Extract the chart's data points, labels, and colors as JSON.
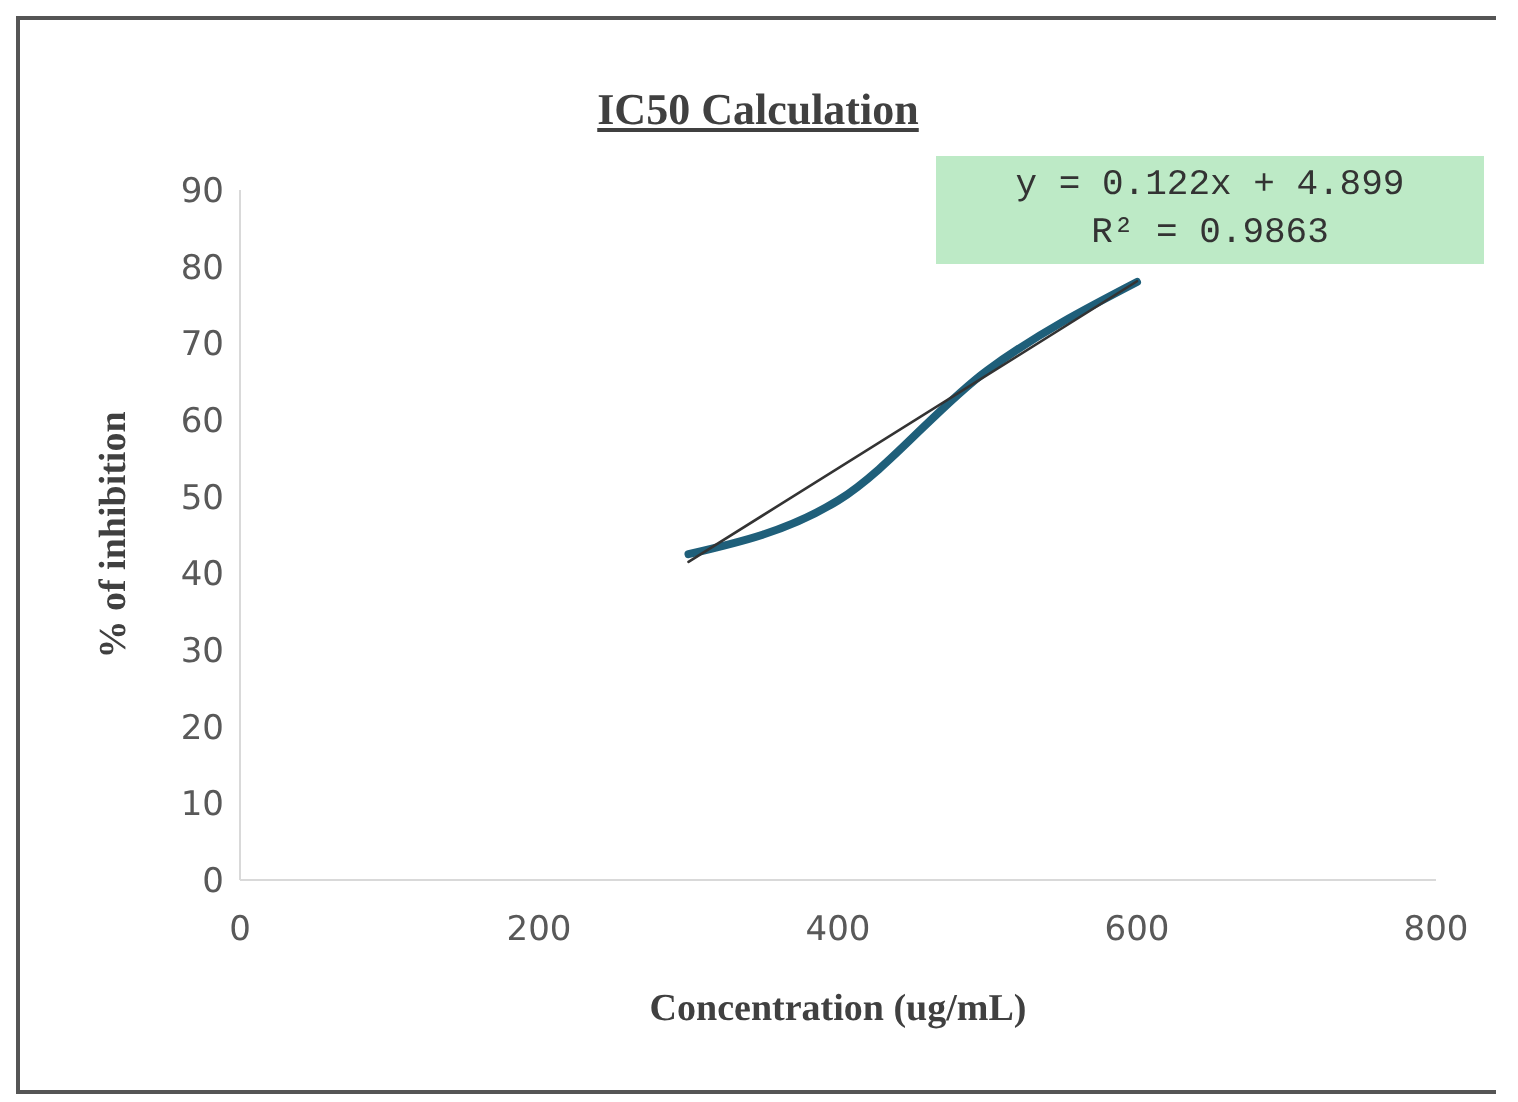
{
  "chart_data": {
    "type": "line",
    "title": "IC50 Calculation",
    "xlabel": "Concentration  (ug/mL)",
    "ylabel": "% of  inhibition",
    "xlim": [
      0,
      800
    ],
    "xticks": [
      0,
      200,
      400,
      600,
      800
    ],
    "ylim": [
      0,
      90
    ],
    "yticks": [
      0,
      10,
      20,
      30,
      40,
      50,
      60,
      70,
      80,
      90
    ],
    "grid": false,
    "legend": false,
    "marker": "none",
    "line_style": "solid",
    "series": [
      {
        "color": "#1f5f7a",
        "x": [
          300,
          400,
          500,
          600
        ],
        "values": [
          42.5,
          49.5,
          66.5,
          78
        ]
      },
      {
        "color": "#333333",
        "x": [
          300,
          600
        ],
        "values": [
          41.5,
          78.1
        ]
      }
    ],
    "annotations": [
      "y = 0.122x + 4.899",
      "R² = 0.9863"
    ]
  }
}
